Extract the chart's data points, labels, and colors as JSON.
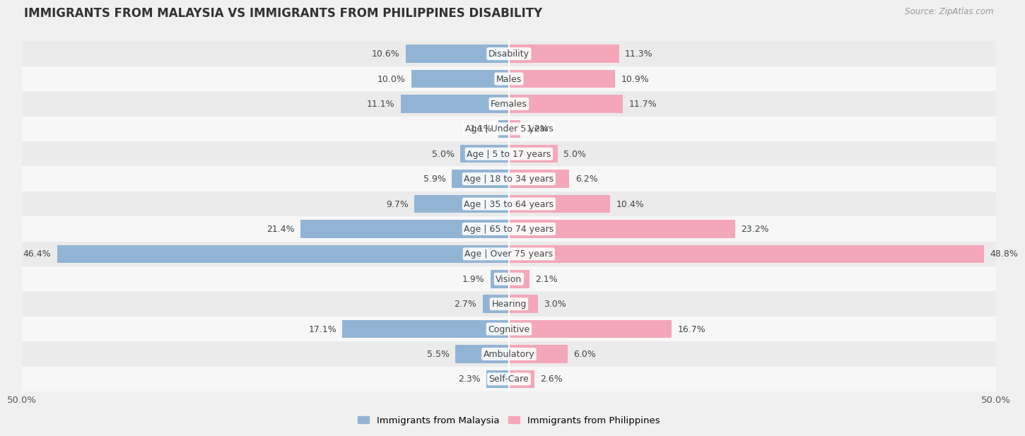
{
  "title": "IMMIGRANTS FROM MALAYSIA VS IMMIGRANTS FROM PHILIPPINES DISABILITY",
  "source": "Source: ZipAtlas.com",
  "categories": [
    "Disability",
    "Males",
    "Females",
    "Age | Under 5 years",
    "Age | 5 to 17 years",
    "Age | 18 to 34 years",
    "Age | 35 to 64 years",
    "Age | 65 to 74 years",
    "Age | Over 75 years",
    "Vision",
    "Hearing",
    "Cognitive",
    "Ambulatory",
    "Self-Care"
  ],
  "malaysia_values": [
    10.6,
    10.0,
    11.1,
    1.1,
    5.0,
    5.9,
    9.7,
    21.4,
    46.4,
    1.9,
    2.7,
    17.1,
    5.5,
    2.3
  ],
  "philippines_values": [
    11.3,
    10.9,
    11.7,
    1.2,
    5.0,
    6.2,
    10.4,
    23.2,
    48.8,
    2.1,
    3.0,
    16.7,
    6.0,
    2.6
  ],
  "malaysia_color": "#92b4d4",
  "philippines_color": "#f4a7b9",
  "bar_height": 0.72,
  "axis_max": 50.0,
  "x_tick_label_left": "50.0%",
  "x_tick_label_right": "50.0%",
  "legend_malaysia": "Immigrants from Malaysia",
  "legend_philippines": "Immigrants from Philippines",
  "bg_color": "#f0f0f0",
  "row_colors": [
    "#ebebeb",
    "#f7f7f7"
  ],
  "label_fontsize": 9.0,
  "value_fontsize": 9.0,
  "title_fontsize": 12,
  "source_fontsize": 8.5
}
